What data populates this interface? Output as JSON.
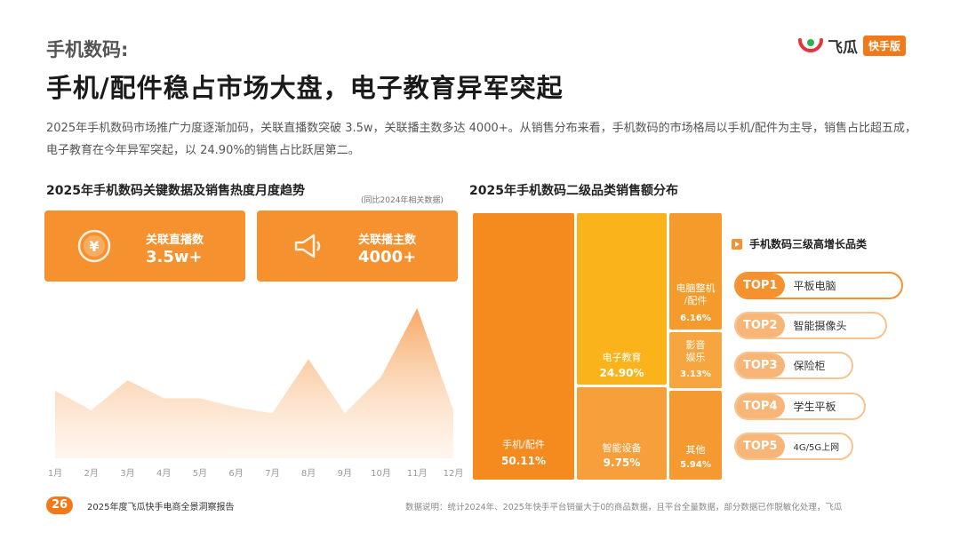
{
  "header": {
    "section": "手机数码:",
    "headline": "手机/配件稳占市场大盘，电子教育异军突起",
    "intro": "2025年手机数码市场推广力度逐渐加码，关联直播数突破 3.5w，关联播主数多达 4000+。从销售分布来看，手机数码的市场格局以手机/配件为主导，销售占比超五成，电子教育在今年异军突起，以 24.90%的销售占比跃居第二。"
  },
  "logo": {
    "name": "飞瓜",
    "badge": "快手版"
  },
  "colors": {
    "accent": "#f5912e",
    "accent_light": "#f7b577",
    "yellow": "#fbb31c",
    "orange": "#f58a1f"
  },
  "left_chart": {
    "title": "2025年手机数码关键数据及销售热度月度趋势",
    "note": "(同比2024年相关数据)",
    "kpis": [
      {
        "label": "关联直播数",
        "value": "3.5w+",
        "icon": "coin-icon"
      },
      {
        "label": "关联播主数",
        "value": "4000+",
        "icon": "megaphone-icon"
      }
    ]
  },
  "right_chart": {
    "title": "2025年手机数码二级品类销售额分布"
  },
  "top_list": {
    "title": "手机数码三级高增长品类",
    "items": [
      {
        "rank": "TOP1",
        "name": "平板电脑"
      },
      {
        "rank": "TOP2",
        "name": "智能摄像头"
      },
      {
        "rank": "TOP3",
        "name": "保险柜"
      },
      {
        "rank": "TOP4",
        "name": "学生平板"
      },
      {
        "rank": "TOP5",
        "name": "4G/5G上网"
      }
    ]
  },
  "footer": {
    "page": "26",
    "report": "2025年度飞瓜快手电商全景洞察报告",
    "note": "数据说明：统计2024年、2025年快手平台销量大于0的商品数据，且平台全量数据，部分数据已作脱敏化处理，飞瓜"
  },
  "chart_data": [
    {
      "type": "area",
      "title": "2025年手机数码关键数据及销售热度月度趋势",
      "x": [
        "1月",
        "2月",
        "3月",
        "4月",
        "5月",
        "6月",
        "7月",
        "8月",
        "9月",
        "10月",
        "11月",
        "12月"
      ],
      "series": [
        {
          "values": [
            45,
            32,
            52,
            40,
            40,
            34,
            30,
            66,
            30,
            54,
            100,
            32
          ]
        }
      ],
      "ylim": [
        0,
        110
      ],
      "grid": false,
      "y_axis_visible": false
    },
    {
      "type": "treemap",
      "title": "2025年手机数码二级品类销售额分布",
      "categories": [
        "手机/配件",
        "电子教育",
        "智能设备",
        "电脑整机/配件",
        "影音娱乐",
        "其他"
      ],
      "values": [
        50.11,
        24.9,
        9.75,
        6.16,
        3.13,
        5.94
      ],
      "labels": [
        "50.11%",
        "24.90%",
        "9.75%",
        "6.16%",
        "3.13%",
        "5.94%"
      ]
    }
  ]
}
